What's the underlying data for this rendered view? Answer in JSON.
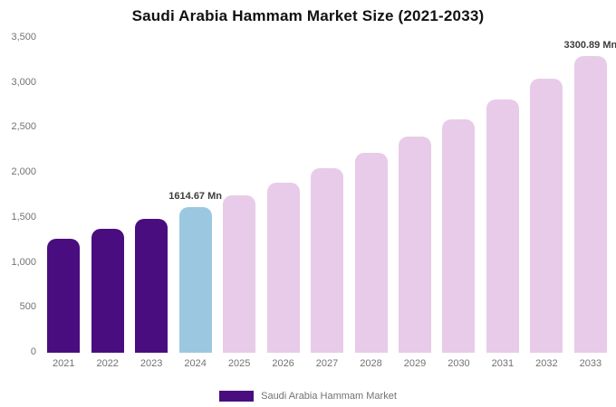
{
  "chart_data": {
    "type": "bar",
    "title": "Saudi Arabia Hammam Market Size (2021-2033)",
    "categories": [
      "2021",
      "2022",
      "2023",
      "2024",
      "2025",
      "2026",
      "2027",
      "2028",
      "2029",
      "2030",
      "2031",
      "2032",
      "2033"
    ],
    "values": [
      1272,
      1377,
      1491,
      1614.67,
      1748,
      1893,
      2049,
      2219,
      2402,
      2600,
      2815,
      3048,
      3300.89
    ],
    "bar_roles": [
      "past",
      "past",
      "past",
      "current",
      "forecast",
      "forecast",
      "forecast",
      "forecast",
      "forecast",
      "forecast",
      "forecast",
      "forecast",
      "forecast"
    ],
    "colors": {
      "past": "#4a0d7f",
      "current": "#9bc8e0",
      "forecast": "#e8cbe8"
    },
    "value_labels": {
      "2024": "1614.67 Mn",
      "2033": "3300.89 Mn"
    },
    "xlabel": "",
    "ylabel": "",
    "ylim": [
      0,
      3500
    ],
    "ytick_values": [
      0,
      500,
      1000,
      1500,
      2000,
      2500,
      3000,
      3500
    ],
    "ytick_labels": [
      "0",
      "500",
      "1,000",
      "1,500",
      "2,000",
      "2,500",
      "3,000",
      "3,500"
    ],
    "grid": false,
    "legend": {
      "position": "bottom",
      "label": "Saudi Arabia Hammam Market"
    }
  }
}
